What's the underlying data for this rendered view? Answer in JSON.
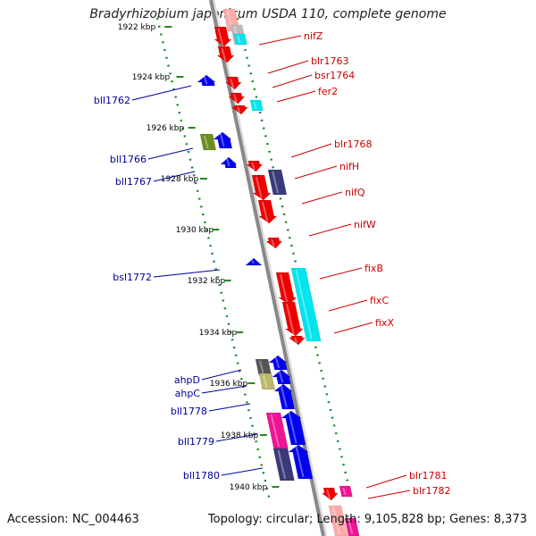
{
  "title": "Bradyrhizobium japonicum USDA 110, complete genome",
  "footer": {
    "accession": "Accession: NC_004463",
    "summary": "Topology: circular; Length: 9,105,828 bp; Genes: 8,373"
  },
  "colors": {
    "forward_label": "#cc0000",
    "reverse_label": "#000099",
    "kbp_label": "#000000",
    "dots": "#228822",
    "backbone": "#888888",
    "red": "#ee0000",
    "blue": "#0000ee",
    "cyan": "#00e5ee",
    "navy": "#3a3a7a",
    "olive": "#6b8e23",
    "khaki": "#bdb76b",
    "gray": "#555555",
    "pink": "#ee1493",
    "lightgray": "#bbbbbb"
  },
  "ruler": {
    "unit": "kbp",
    "labels": [
      "1922 kbp",
      "1924 kbp",
      "1926 kbp",
      "1928 kbp",
      "1930 kbp",
      "1932 kbp",
      "1934 kbp",
      "1936 kbp",
      "1938 kbp",
      "1940 kbp"
    ]
  },
  "genes_forward": [
    {
      "name": "nifZ"
    },
    {
      "name": "blr1763"
    },
    {
      "name": "bsr1764"
    },
    {
      "name": "fer2"
    },
    {
      "name": "blr1768"
    },
    {
      "name": "nifH"
    },
    {
      "name": "nifQ"
    },
    {
      "name": "nifW"
    },
    {
      "name": "fixB"
    },
    {
      "name": "fixC"
    },
    {
      "name": "fixX"
    },
    {
      "name": "blr1781"
    },
    {
      "name": "blr1782"
    }
  ],
  "genes_reverse": [
    {
      "name": "bll1762"
    },
    {
      "name": "bll1766"
    },
    {
      "name": "bll1767"
    },
    {
      "name": "bsl1772"
    },
    {
      "name": "ahpD"
    },
    {
      "name": "ahpC"
    },
    {
      "name": "bll1778"
    },
    {
      "name": "bll1779"
    },
    {
      "name": "bll1780"
    }
  ]
}
